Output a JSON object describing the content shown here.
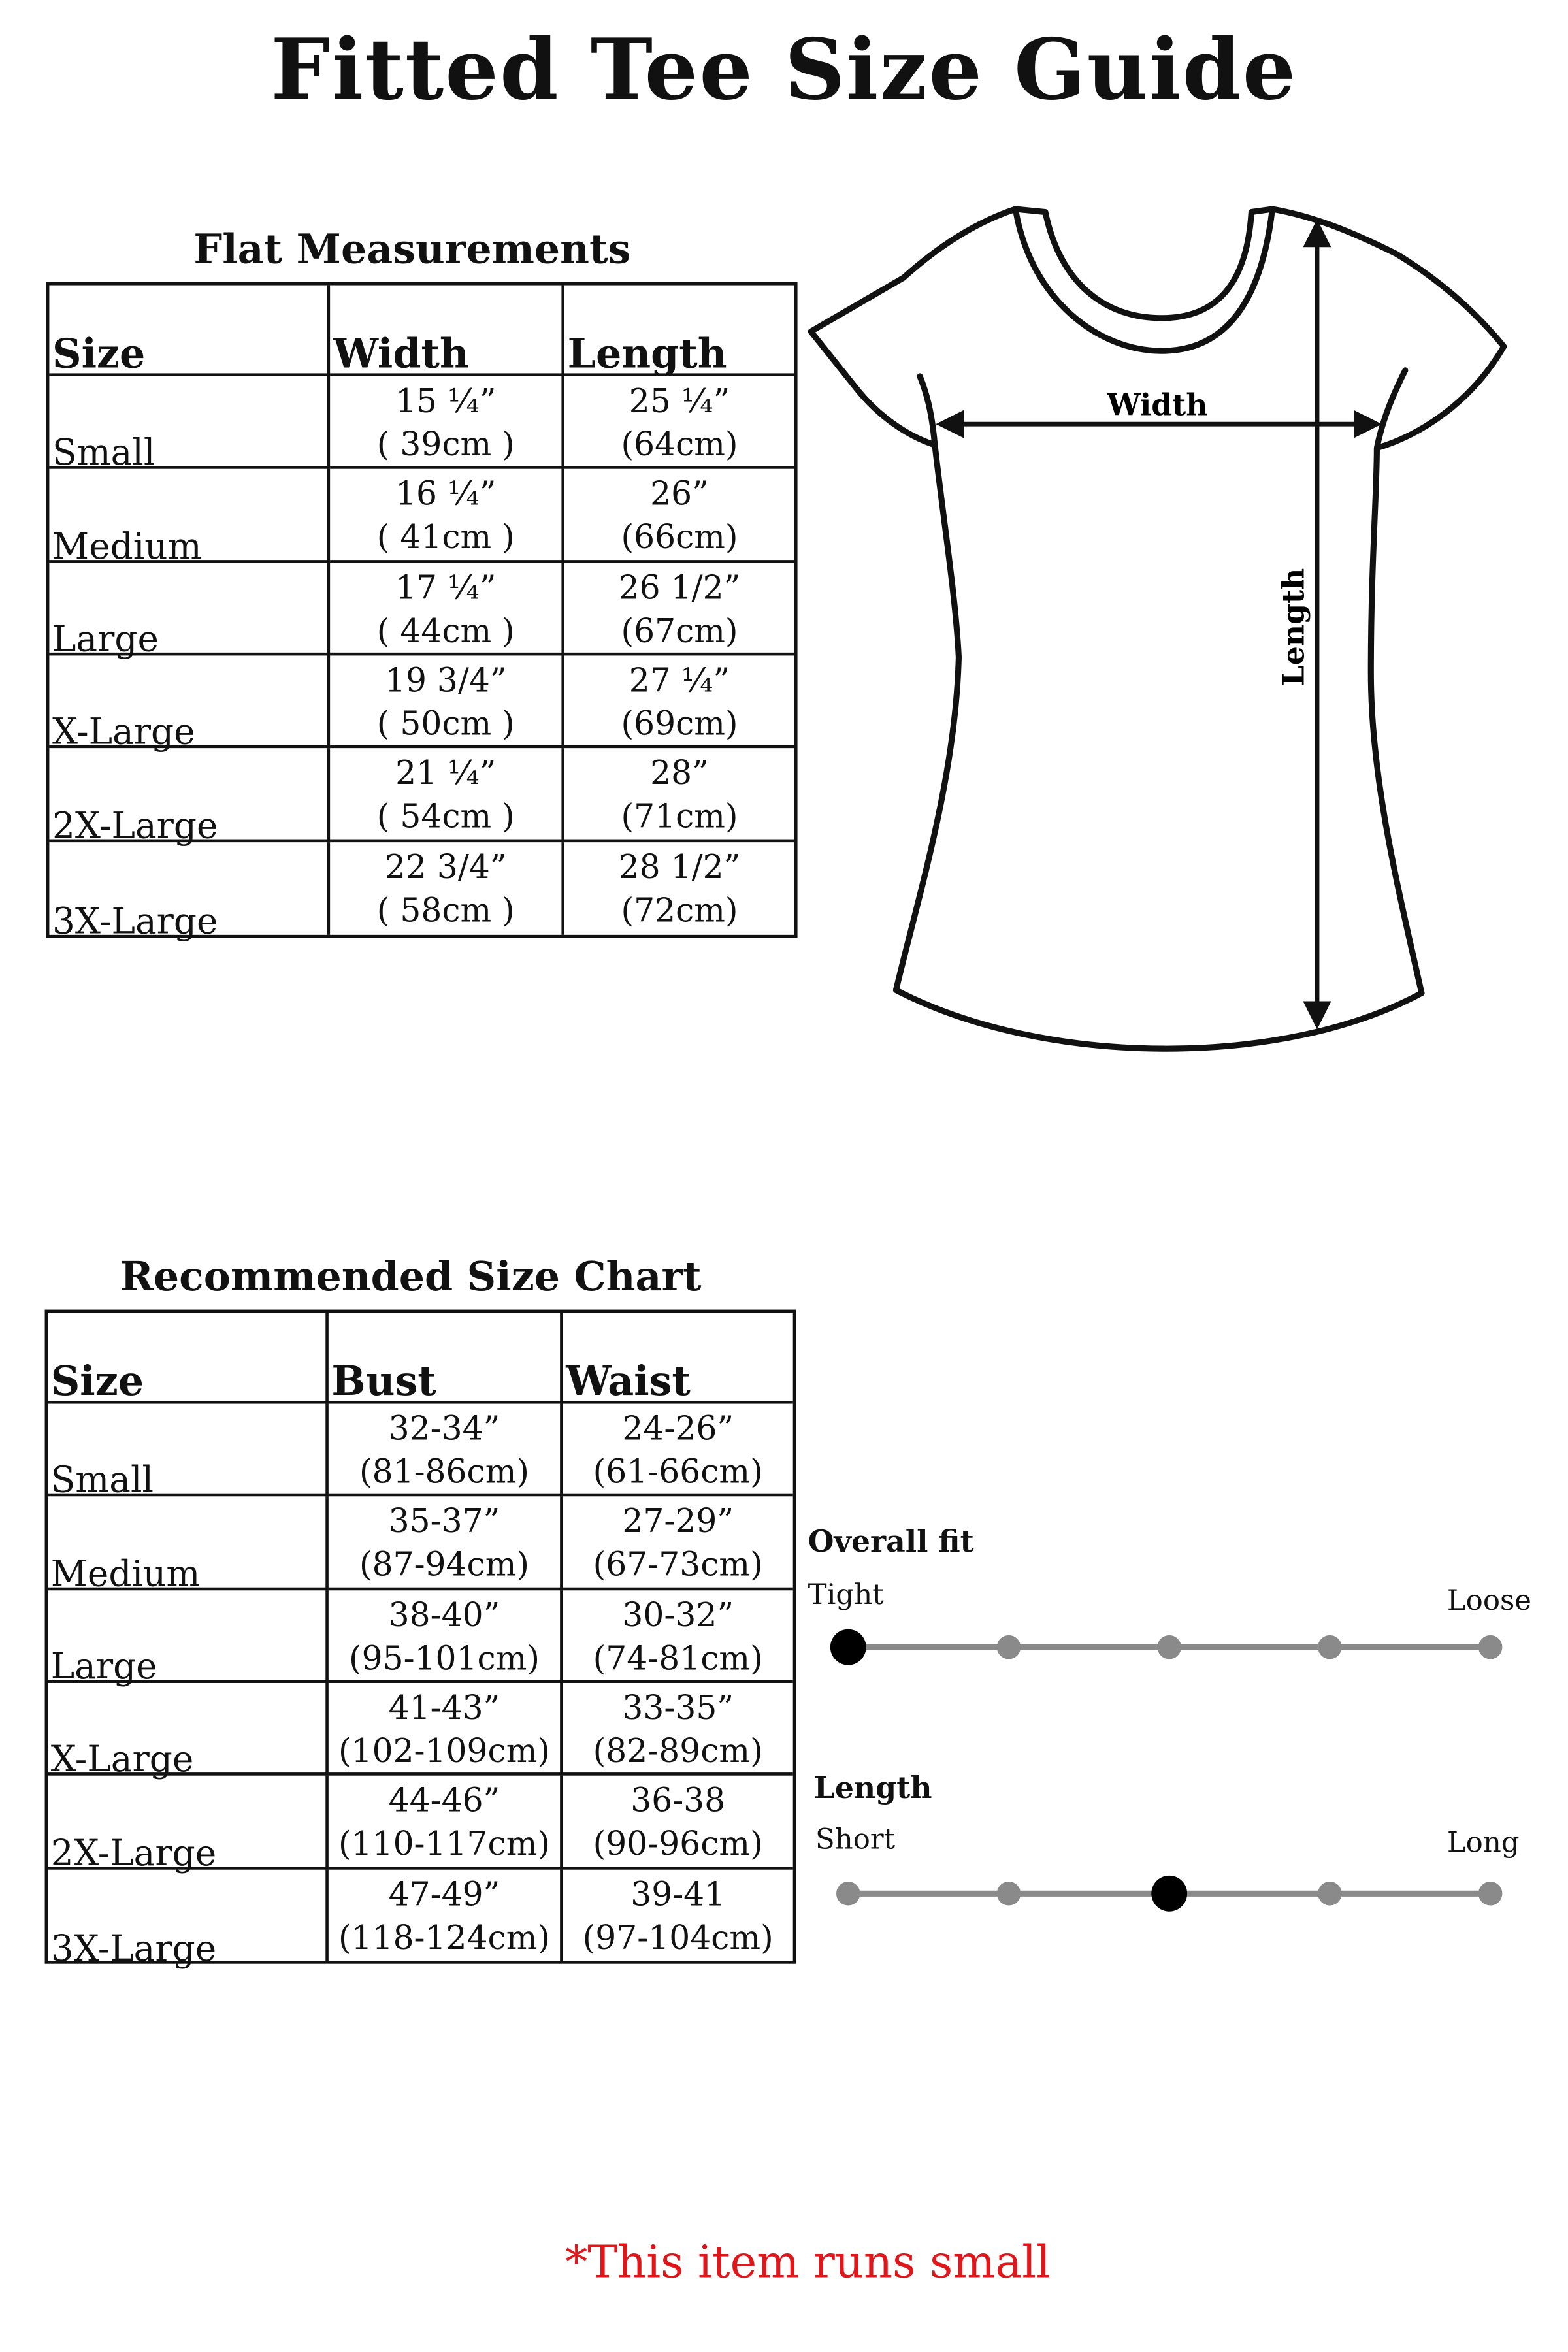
{
  "title": "Fitted Tee Size Guide",
  "flat_measurements": {
    "heading": "Flat Measurements",
    "columns": [
      "Size",
      "Width",
      "Length"
    ],
    "rows": [
      {
        "size": "Small",
        "width": [
          "15 ¼”",
          "( 39cm )"
        ],
        "length": [
          "25 ¼”",
          "(64cm)"
        ]
      },
      {
        "size": "Medium",
        "width": [
          "16 ¼”",
          "( 41cm )"
        ],
        "length": [
          "26”",
          "(66cm)"
        ]
      },
      {
        "size": "Large",
        "width": [
          "17 ¼”",
          "( 44cm )"
        ],
        "length": [
          "26 1/2”",
          "(67cm)"
        ]
      },
      {
        "size": "X-Large",
        "width": [
          "19 3/4”",
          "( 50cm )"
        ],
        "length": [
          "27 ¼”",
          "(69cm)"
        ]
      },
      {
        "size": "2X-Large",
        "width": [
          "21 ¼”",
          "( 54cm )"
        ],
        "length": [
          "28”",
          "(71cm)"
        ]
      },
      {
        "size": "3X-Large",
        "width": [
          "22 3/4”",
          "( 58cm )"
        ],
        "length": [
          "28 1/2”",
          "(72cm)"
        ]
      }
    ]
  },
  "diagram": {
    "width_label": "Width",
    "length_label": "Length"
  },
  "recommended": {
    "heading": "Recommended Size Chart",
    "columns": [
      "Size",
      "Bust",
      "Waist"
    ],
    "rows": [
      {
        "size": "Small",
        "bust": [
          "32-34”",
          "(81-86cm)"
        ],
        "waist": [
          "24-26”",
          "(61-66cm)"
        ]
      },
      {
        "size": "Medium",
        "bust": [
          "35-37”",
          "(87-94cm)"
        ],
        "waist": [
          "27-29”",
          "(67-73cm)"
        ]
      },
      {
        "size": "Large",
        "bust": [
          "38-40”",
          "(95-101cm)"
        ],
        "waist": [
          "30-32”",
          "(74-81cm)"
        ]
      },
      {
        "size": "X-Large",
        "bust": [
          "41-43”",
          "(102-109cm)"
        ],
        "waist": [
          "33-35”",
          "(82-89cm)"
        ]
      },
      {
        "size": "2X-Large",
        "bust": [
          "44-46”",
          "(110-117cm)"
        ],
        "waist": [
          "36-38",
          "(90-96cm)"
        ]
      },
      {
        "size": "3X-Large",
        "bust": [
          "47-49”",
          "(118-124cm)"
        ],
        "waist": [
          "39-41",
          "(97-104cm)"
        ]
      }
    ]
  },
  "fit_scales": [
    {
      "label": "Overall fit",
      "min": "Tight",
      "max": "Loose",
      "steps": 5,
      "selected": 1
    },
    {
      "label": "Length",
      "min": "Short",
      "max": "Long",
      "steps": 5,
      "selected": 3
    }
  ],
  "note": "*This item runs small",
  "colors": {
    "note": "#e0161b",
    "scale_line": "#8a8a8a",
    "selected_dot": "#000000"
  }
}
